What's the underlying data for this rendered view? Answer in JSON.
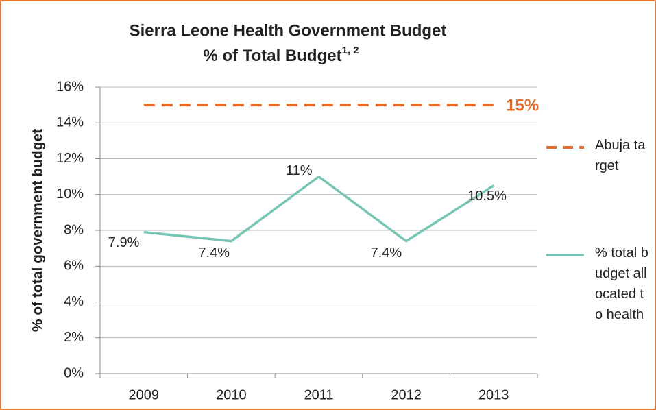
{
  "chart_data": {
    "type": "line",
    "title": [
      "Sierra Leone Health Government Budget",
      "% of Total Budget"
    ],
    "title_superscript": "1, 2",
    "y_label": "% of total government budget",
    "categories": [
      "2009",
      "2010",
      "2011",
      "2012",
      "2013"
    ],
    "ylim": [
      0,
      16
    ],
    "yticks": [
      {
        "value": 0,
        "label": "0%"
      },
      {
        "value": 2,
        "label": "2%"
      },
      {
        "value": 4,
        "label": "4%"
      },
      {
        "value": 6,
        "label": "6%"
      },
      {
        "value": 8,
        "label": "8%"
      },
      {
        "value": 10,
        "label": "10%"
      },
      {
        "value": 12,
        "label": "12%"
      },
      {
        "value": 14,
        "label": "14%"
      },
      {
        "value": 16,
        "label": "16%"
      }
    ],
    "grid": true,
    "legend": "right",
    "series": [
      {
        "name": "Abuja target",
        "color": "#e46c2a",
        "dashed": true,
        "values": [
          15,
          15,
          15,
          15,
          15
        ],
        "value_labels": [
          null,
          null,
          null,
          null,
          "15%"
        ]
      },
      {
        "name": "% total budget allocated to health",
        "color": "#77c5b5",
        "dashed": false,
        "values": [
          7.9,
          7.4,
          11,
          7.4,
          10.5
        ],
        "value_labels": [
          "7.9%",
          "7.4%",
          "11%",
          "7.4%",
          "10.5%"
        ]
      }
    ]
  }
}
